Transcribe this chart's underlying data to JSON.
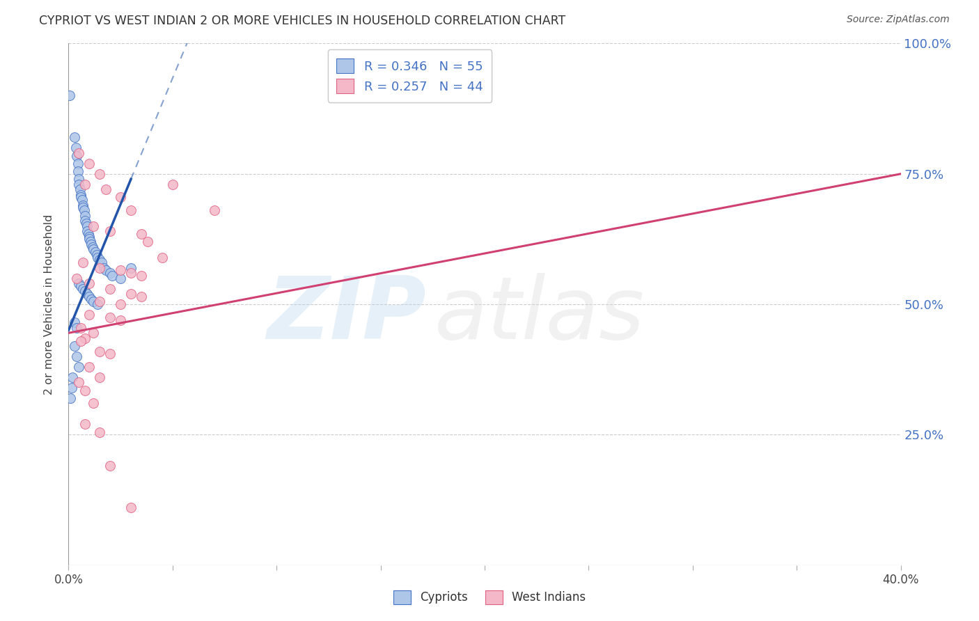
{
  "title": "CYPRIOT VS WEST INDIAN 2 OR MORE VEHICLES IN HOUSEHOLD CORRELATION CHART",
  "source": "Source: ZipAtlas.com",
  "ylabel": "2 or more Vehicles in Household",
  "xlim": [
    0.0,
    40.0
  ],
  "ylim": [
    0.0,
    100.0
  ],
  "yticks": [
    25.0,
    50.0,
    75.0,
    100.0
  ],
  "xticks": [
    0.0,
    5.0,
    10.0,
    15.0,
    20.0,
    25.0,
    30.0,
    35.0,
    40.0
  ],
  "legend_blue_r": "0.346",
  "legend_blue_n": "55",
  "legend_pink_r": "0.257",
  "legend_pink_n": "44",
  "blue_dot_color": "#aec6e8",
  "blue_edge_color": "#4472C4",
  "pink_dot_color": "#f4b8c8",
  "pink_edge_color": "#e06080",
  "blue_line_color": "#2255aa",
  "pink_line_color": "#d04070",
  "background_color": "#ffffff",
  "grid_color": "#cccccc",
  "blue_scatter": [
    [
      0.05,
      90.0
    ],
    [
      0.3,
      82.0
    ],
    [
      0.35,
      80.0
    ],
    [
      0.4,
      78.5
    ],
    [
      0.45,
      77.0
    ],
    [
      0.45,
      75.5
    ],
    [
      0.5,
      74.0
    ],
    [
      0.5,
      73.0
    ],
    [
      0.55,
      72.0
    ],
    [
      0.6,
      71.0
    ],
    [
      0.6,
      70.5
    ],
    [
      0.65,
      70.0
    ],
    [
      0.7,
      69.0
    ],
    [
      0.7,
      68.5
    ],
    [
      0.75,
      68.0
    ],
    [
      0.8,
      67.0
    ],
    [
      0.8,
      66.0
    ],
    [
      0.85,
      65.5
    ],
    [
      0.9,
      65.0
    ],
    [
      0.9,
      64.0
    ],
    [
      0.95,
      63.5
    ],
    [
      1.0,
      63.0
    ],
    [
      1.0,
      62.5
    ],
    [
      1.05,
      62.0
    ],
    [
      1.1,
      61.5
    ],
    [
      1.15,
      61.0
    ],
    [
      1.2,
      60.5
    ],
    [
      1.3,
      60.0
    ],
    [
      1.35,
      59.5
    ],
    [
      1.4,
      59.0
    ],
    [
      1.5,
      58.5
    ],
    [
      1.6,
      58.0
    ],
    [
      1.7,
      57.0
    ],
    [
      1.8,
      56.5
    ],
    [
      2.0,
      56.0
    ],
    [
      2.1,
      55.5
    ],
    [
      2.5,
      55.0
    ],
    [
      3.0,
      57.0
    ],
    [
      0.5,
      54.0
    ],
    [
      0.6,
      53.5
    ],
    [
      0.7,
      53.0
    ],
    [
      0.8,
      52.5
    ],
    [
      0.9,
      52.0
    ],
    [
      1.0,
      51.5
    ],
    [
      1.1,
      51.0
    ],
    [
      1.2,
      50.5
    ],
    [
      1.4,
      50.0
    ],
    [
      0.3,
      46.5
    ],
    [
      0.4,
      45.5
    ],
    [
      0.3,
      42.0
    ],
    [
      0.4,
      40.0
    ],
    [
      0.5,
      38.0
    ],
    [
      0.2,
      36.0
    ],
    [
      0.15,
      34.0
    ],
    [
      0.1,
      32.0
    ]
  ],
  "pink_scatter": [
    [
      0.5,
      79.0
    ],
    [
      1.0,
      77.0
    ],
    [
      1.5,
      75.0
    ],
    [
      0.8,
      73.0
    ],
    [
      1.8,
      72.0
    ],
    [
      2.5,
      70.5
    ],
    [
      3.0,
      68.0
    ],
    [
      5.0,
      73.0
    ],
    [
      7.0,
      68.0
    ],
    [
      1.2,
      65.0
    ],
    [
      2.0,
      64.0
    ],
    [
      3.5,
      63.5
    ],
    [
      3.8,
      62.0
    ],
    [
      4.5,
      59.0
    ],
    [
      0.7,
      58.0
    ],
    [
      1.5,
      57.0
    ],
    [
      2.5,
      56.5
    ],
    [
      3.0,
      56.0
    ],
    [
      3.5,
      55.5
    ],
    [
      0.4,
      55.0
    ],
    [
      1.0,
      54.0
    ],
    [
      2.0,
      53.0
    ],
    [
      3.0,
      52.0
    ],
    [
      3.5,
      51.5
    ],
    [
      1.5,
      50.5
    ],
    [
      2.5,
      50.0
    ],
    [
      1.0,
      48.0
    ],
    [
      2.0,
      47.5
    ],
    [
      2.5,
      47.0
    ],
    [
      0.6,
      45.5
    ],
    [
      1.2,
      44.5
    ],
    [
      0.8,
      43.5
    ],
    [
      0.6,
      43.0
    ],
    [
      1.5,
      41.0
    ],
    [
      2.0,
      40.5
    ],
    [
      1.0,
      38.0
    ],
    [
      1.5,
      36.0
    ],
    [
      0.5,
      35.0
    ],
    [
      0.8,
      33.5
    ],
    [
      1.2,
      31.0
    ],
    [
      0.8,
      27.0
    ],
    [
      1.5,
      25.5
    ],
    [
      2.0,
      19.0
    ],
    [
      3.0,
      11.0
    ]
  ],
  "blue_line_x0": 0.0,
  "blue_line_y0": 45.0,
  "blue_line_x1": 3.0,
  "blue_line_y1": 74.0,
  "blue_dash_x1": 8.5,
  "blue_dash_y1": 100.0,
  "pink_line_x0": 0.0,
  "pink_line_y0": 44.5,
  "pink_line_x1": 40.0,
  "pink_line_y1": 75.0
}
